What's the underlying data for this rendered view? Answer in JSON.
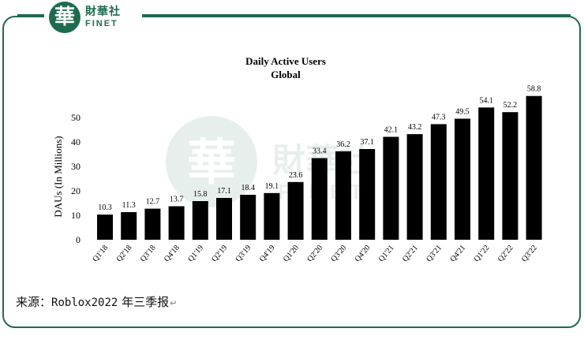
{
  "brand": {
    "logo_glyph": "華",
    "name_cn": "財華社",
    "name_en": "FINET",
    "color": "#1f6b4e"
  },
  "chart_data": {
    "type": "bar",
    "title": "Daily Active Users",
    "subtitle": "Global",
    "xlabel": "",
    "ylabel": "DAUs (In Millions)",
    "ylim": [
      0,
      50
    ],
    "yticks": [
      0,
      10,
      20,
      30,
      40,
      50
    ],
    "grid": false,
    "bar_color": "#000000",
    "categories": [
      "Q1'18",
      "Q2'18",
      "Q3'18",
      "Q4'18",
      "Q1'19",
      "Q2'19",
      "Q3'19",
      "Q4'19",
      "Q1'20",
      "Q2'20",
      "Q3'20",
      "Q4'20",
      "Q1'21",
      "Q2'21",
      "Q3'21",
      "Q4'21",
      "Q1'22",
      "Q2'22",
      "Q3'22"
    ],
    "values": [
      10.3,
      11.3,
      12.7,
      13.7,
      15.8,
      17.1,
      18.4,
      19.1,
      23.6,
      33.4,
      36.2,
      37.1,
      42.1,
      43.2,
      47.3,
      49.5,
      54.1,
      52.2,
      58.8
    ],
    "data_labels": [
      "10.3",
      "11.3",
      "12.7",
      "13.7",
      "15.8",
      "17.1",
      "18.4",
      "19.1",
      "23.6",
      "33.4",
      "36.2",
      "37.1",
      "42.1",
      "43.2",
      "47.3",
      "49.5",
      "54.1",
      "52.2",
      "58.8"
    ]
  },
  "source": {
    "prefix": "来源：",
    "text": "Roblox2022",
    "suffix": " 年三季报",
    "mark": "↵"
  }
}
